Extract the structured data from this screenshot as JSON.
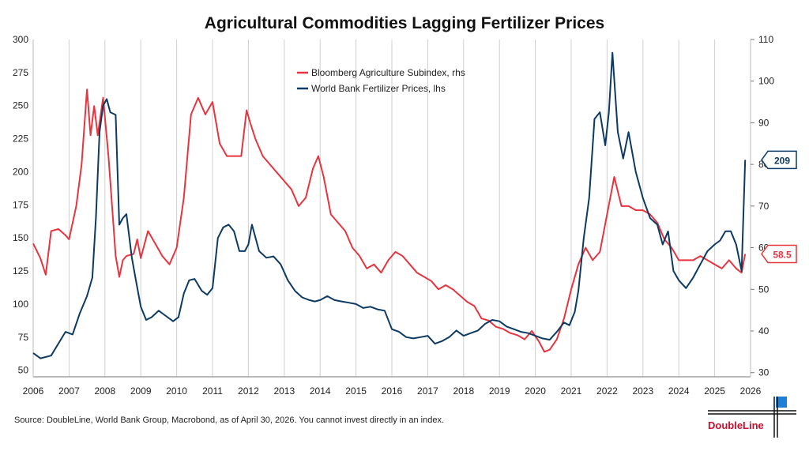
{
  "chart_data": {
    "type": "line",
    "title": "Agricultural Commodities Lagging Fertilizer Prices",
    "xlim": [
      2006,
      2026
    ],
    "x_ticks": [
      "2006",
      "2007",
      "2008",
      "2009",
      "2010",
      "2011",
      "2012",
      "2013",
      "2014",
      "2015",
      "2016",
      "2017",
      "2018",
      "2019",
      "2020",
      "2021",
      "2022",
      "2023",
      "2024",
      "2025",
      "2026"
    ],
    "y_left": {
      "lim": [
        45,
        300
      ],
      "ticks": [
        "50",
        "75",
        "100",
        "125",
        "150",
        "175",
        "200",
        "225",
        "250",
        "275",
        "300"
      ]
    },
    "y_right": {
      "lim": [
        29,
        110
      ],
      "ticks": [
        "30",
        "50",
        "70",
        "90",
        "110"
      ],
      "minor_ticks": [
        "40",
        "60",
        "80",
        "100"
      ]
    },
    "grid": "vertical",
    "legend_position": "top-center",
    "series": [
      {
        "name": "Bloomberg Agriculture Subindex, rhs",
        "axis": "right",
        "color": "#e8343f",
        "end_label": "58.5",
        "x": [
          2006.0,
          2006.2,
          2006.35,
          2006.5,
          2006.7,
          2006.9,
          2007.0,
          2007.2,
          2007.35,
          2007.5,
          2007.6,
          2007.7,
          2007.8,
          2007.95,
          2008.1,
          2008.3,
          2008.4,
          2008.5,
          2008.6,
          2008.8,
          2008.9,
          2009.0,
          2009.2,
          2009.4,
          2009.6,
          2009.8,
          2010.0,
          2010.2,
          2010.4,
          2010.6,
          2010.8,
          2011.0,
          2011.2,
          2011.4,
          2011.6,
          2011.8,
          2011.95,
          2012.05,
          2012.2,
          2012.4,
          2012.6,
          2012.8,
          2013.0,
          2013.2,
          2013.4,
          2013.6,
          2013.8,
          2013.95,
          2014.1,
          2014.3,
          2014.5,
          2014.7,
          2014.9,
          2015.1,
          2015.3,
          2015.5,
          2015.7,
          2015.9,
          2016.1,
          2016.3,
          2016.5,
          2016.7,
          2016.9,
          2017.1,
          2017.3,
          2017.5,
          2017.7,
          2017.9,
          2018.1,
          2018.3,
          2018.5,
          2018.7,
          2018.9,
          2019.1,
          2019.3,
          2019.5,
          2019.7,
          2019.9,
          2020.1,
          2020.25,
          2020.4,
          2020.6,
          2020.8,
          2021.0,
          2021.2,
          2021.4,
          2021.6,
          2021.8,
          2022.0,
          2022.2,
          2022.4,
          2022.6,
          2022.8,
          2023.0,
          2023.2,
          2023.4,
          2023.6,
          2023.8,
          2024.0,
          2024.2,
          2024.4,
          2024.6,
          2024.8,
          2025.0,
          2025.2,
          2025.4,
          2025.6,
          2025.75,
          2025.85
        ],
        "y": [
          61.0,
          57.5,
          53.5,
          64.0,
          64.5,
          63.0,
          62.0,
          70.0,
          80.0,
          98.0,
          87.0,
          94.0,
          87.0,
          96.0,
          82.0,
          58.0,
          53.0,
          57.0,
          58.0,
          58.5,
          62.0,
          57.5,
          64.0,
          61.0,
          58.0,
          56.0,
          60.0,
          72.0,
          92.0,
          96.0,
          92.0,
          95.0,
          85.0,
          82.0,
          82.0,
          82.0,
          93.0,
          90.0,
          86.0,
          82.0,
          80.0,
          78.0,
          76.0,
          74.0,
          70.0,
          72.0,
          79.0,
          82.0,
          77.0,
          68.0,
          66.0,
          64.0,
          60.0,
          58.0,
          55.0,
          56.0,
          54.0,
          57.0,
          59.0,
          58.0,
          56.0,
          54.0,
          53.0,
          52.0,
          50.0,
          51.0,
          50.0,
          48.5,
          47.0,
          46.0,
          43.0,
          42.5,
          41.0,
          40.5,
          39.5,
          39.0,
          38.0,
          40.0,
          37.5,
          35.0,
          35.5,
          38.0,
          43.0,
          50.0,
          56.0,
          60.0,
          57.0,
          59.0,
          68.0,
          77.0,
          70.0,
          70.0,
          69.0,
          69.0,
          68.0,
          66.0,
          62.0,
          60.0,
          57.0,
          57.0,
          57.0,
          58.0,
          57.0,
          56.0,
          55.0,
          57.0,
          55.0,
          54.0,
          58.5
        ]
      },
      {
        "name": "World Bank Fertilizer Prices, lhs",
        "axis": "left",
        "color": "#0c3a63",
        "end_label": "209",
        "x": [
          2006.0,
          2006.2,
          2006.5,
          2006.7,
          2006.9,
          2007.1,
          2007.3,
          2007.5,
          2007.65,
          2007.75,
          2007.85,
          2007.95,
          2008.05,
          2008.15,
          2008.3,
          2008.4,
          2008.5,
          2008.6,
          2008.75,
          2008.85,
          2009.0,
          2009.15,
          2009.3,
          2009.5,
          2009.7,
          2009.9,
          2010.05,
          2010.2,
          2010.35,
          2010.5,
          2010.7,
          2010.85,
          2011.0,
          2011.15,
          2011.3,
          2011.45,
          2011.6,
          2011.75,
          2011.9,
          2012.0,
          2012.1,
          2012.3,
          2012.5,
          2012.7,
          2012.9,
          2013.1,
          2013.3,
          2013.5,
          2013.7,
          2013.85,
          2014.0,
          2014.2,
          2014.4,
          2014.6,
          2014.8,
          2015.0,
          2015.2,
          2015.4,
          2015.6,
          2015.8,
          2016.0,
          2016.2,
          2016.4,
          2016.6,
          2016.8,
          2017.0,
          2017.2,
          2017.4,
          2017.6,
          2017.8,
          2018.0,
          2018.2,
          2018.4,
          2018.6,
          2018.8,
          2019.0,
          2019.2,
          2019.4,
          2019.6,
          2019.8,
          2020.0,
          2020.2,
          2020.4,
          2020.6,
          2020.8,
          2020.95,
          2021.1,
          2021.2,
          2021.35,
          2021.5,
          2021.65,
          2021.8,
          2021.95,
          2022.05,
          2022.15,
          2022.3,
          2022.45,
          2022.6,
          2022.8,
          2023.0,
          2023.2,
          2023.4,
          2023.55,
          2023.7,
          2023.85,
          2024.0,
          2024.2,
          2024.4,
          2024.6,
          2024.8,
          2025.0,
          2025.15,
          2025.3,
          2025.45,
          2025.6,
          2025.75,
          2025.85
        ],
        "y": [
          63,
          59,
          61,
          70,
          79,
          77,
          93,
          106,
          120,
          165,
          230,
          250,
          255,
          245,
          243,
          160,
          165,
          168,
          135,
          120,
          98,
          88,
          90,
          95,
          91,
          87,
          90,
          108,
          118,
          119,
          110,
          107,
          112,
          150,
          158,
          160,
          155,
          140,
          140,
          145,
          160,
          140,
          135,
          136,
          130,
          118,
          110,
          105,
          103,
          102,
          103,
          106,
          103,
          102,
          101,
          100,
          97,
          98,
          96,
          95,
          81,
          79,
          75,
          74,
          75,
          76,
          70,
          72,
          75,
          80,
          76,
          78,
          80,
          85,
          88,
          87,
          83,
          81,
          79,
          78,
          76,
          74,
          73,
          79,
          86,
          84,
          94,
          110,
          150,
          180,
          240,
          245,
          220,
          245,
          290,
          230,
          210,
          230,
          200,
          180,
          165,
          160,
          145,
          155,
          125,
          118,
          112,
          120,
          130,
          140,
          145,
          148,
          155,
          155,
          145,
          125,
          209
        ]
      }
    ]
  },
  "source_text": "Source: DoubleLine, World Bank Group, Macrobond, as of April 30, 2026. You cannot invest directly in an index.",
  "logo_text": "DoubleLine"
}
